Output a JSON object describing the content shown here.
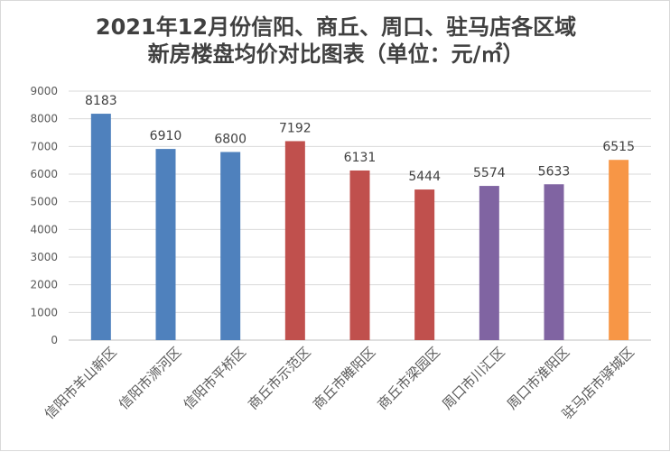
{
  "chart_data": {
    "type": "bar",
    "title_line1": "2021年12月份信阳、商丘、周口、驻马店各区域",
    "title_line2": "新房楼盘均价对比图表（单位：元/㎡）",
    "categories": [
      "信阳市羊山新区",
      "信阳市浉河区",
      "信阳市平桥区",
      "商丘市示范区",
      "商丘市睢阳区",
      "商丘市梁园区",
      "周口市川汇区",
      "周口市淮阳区",
      "驻马店市驿城区"
    ],
    "values": [
      8183,
      6910,
      6800,
      7192,
      6131,
      5444,
      5574,
      5633,
      6515
    ],
    "bar_colors": [
      "#4f81bd",
      "#4f81bd",
      "#4f81bd",
      "#c0504d",
      "#c0504d",
      "#c0504d",
      "#8064a2",
      "#8064a2",
      "#f79646"
    ],
    "yticks": [
      0,
      1000,
      2000,
      3000,
      4000,
      5000,
      6000,
      7000,
      8000,
      9000
    ],
    "ylim": [
      0,
      9000
    ],
    "grid": true,
    "legend": "none"
  }
}
